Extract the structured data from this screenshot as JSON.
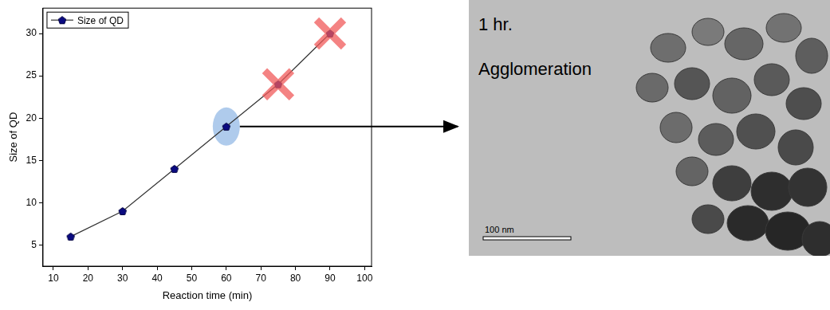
{
  "chart_data": {
    "type": "line",
    "x_label": "Reaction time (min)",
    "y_label": "Size of QD",
    "series": [
      {
        "name": "Size of QD",
        "color": "#0a0a80",
        "marker": "pentagon",
        "line_style": "solid",
        "x": [
          15,
          30,
          45,
          60,
          75,
          90
        ],
        "values": [
          6,
          9,
          14,
          19,
          24,
          30
        ]
      }
    ],
    "xlim": [
      7,
      102
    ],
    "xticks": [
      10,
      20,
      30,
      40,
      50,
      60,
      70,
      80,
      90,
      100
    ],
    "ylim": [
      2.5,
      33
    ],
    "yticks": [
      5,
      10,
      15,
      20,
      25,
      30
    ],
    "grid": false,
    "legend": "upper left",
    "marked": {
      "crossed": [
        75,
        90
      ],
      "circled": [
        60
      ]
    }
  },
  "image": {
    "caption": "1 hr.",
    "label": "Agglomeration",
    "scale_bar": "100 nm"
  }
}
